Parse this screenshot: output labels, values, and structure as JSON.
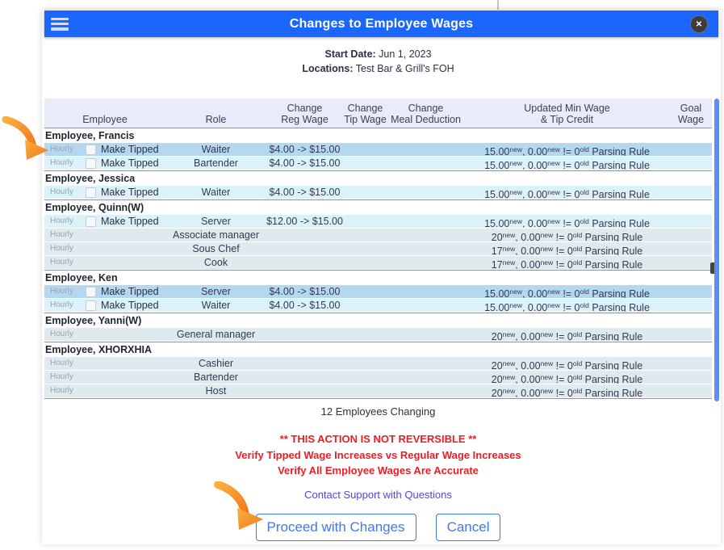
{
  "modal": {
    "title": "Changes to Employee Wages",
    "menu_icon": "hamburger",
    "close_glyph": "✕"
  },
  "info": {
    "start_date_label": "Start Date:",
    "start_date_value": " Jun 1, 2023",
    "locations_label": "Locations:",
    "locations_value": " Test Bar & Grill's FOH"
  },
  "table": {
    "columns": [
      {
        "label": "Employee"
      },
      {
        "label": "Role"
      },
      {
        "label": "Change\nReg Wage"
      },
      {
        "label": "Change\nTip Wage"
      },
      {
        "label": "Change\nMeal Deduction"
      },
      {
        "label": "Updated Min Wage\n& Tip Credit"
      },
      {
        "label": "Goal Wage"
      }
    ],
    "hourly_label": "Hourly",
    "make_tipped_label": "Make Tipped",
    "sup_new": "new",
    "sup_old": "old",
    "groups": [
      {
        "name": "Employee, Francis",
        "rows": [
          {
            "type": "selected",
            "tipped": true,
            "role": "Waiter",
            "reg_wage": "$4.00 -> $15.00",
            "min_new": "15.00",
            "tip_new": "0.00",
            "old": "0",
            "note": "Parsing Rule"
          },
          {
            "type": "tipped",
            "tipped": true,
            "role": "Bartender",
            "reg_wage": "$4.00 -> $15.00",
            "min_new": "15.00",
            "tip_new": "0.00",
            "old": "0",
            "note": "Parsing Rule"
          }
        ]
      },
      {
        "name": "Employee, Jessica",
        "rows": [
          {
            "type": "tipped",
            "tipped": true,
            "role": "Waiter",
            "reg_wage": "$4.00 -> $15.00",
            "min_new": "15.00",
            "tip_new": "0.00",
            "old": "0",
            "note": "Parsing Rule"
          }
        ]
      },
      {
        "name": "Employee, Quinn(W)",
        "rows": [
          {
            "type": "tipped",
            "tipped": true,
            "role": "Server",
            "reg_wage": "$12.00 -> $15.00",
            "min_new": "15.00",
            "tip_new": "0.00",
            "old": "0",
            "note": "Parsing Rule"
          },
          {
            "type": "plain",
            "tipped": false,
            "role": "Associate manager",
            "reg_wage": "",
            "min_new": "20",
            "tip_new": "0.00",
            "old": "0",
            "note": "Parsing Rule"
          },
          {
            "type": "plain",
            "tipped": false,
            "role": "Sous Chef",
            "reg_wage": "",
            "min_new": "17",
            "tip_new": "0.00",
            "old": "0",
            "note": "Parsing Rule"
          },
          {
            "type": "plain",
            "tipped": false,
            "role": "Cook",
            "reg_wage": "",
            "min_new": "17",
            "tip_new": "0.00",
            "old": "0",
            "note": "Parsing Rule"
          }
        ]
      },
      {
        "name": "Employee, Ken",
        "rows": [
          {
            "type": "selected",
            "tipped": true,
            "role": "Server",
            "reg_wage": "$4.00 -> $15.00",
            "min_new": "15.00",
            "tip_new": "0.00",
            "old": "0",
            "note": "Parsing Rule"
          },
          {
            "type": "tipped",
            "tipped": true,
            "role": "Waiter",
            "reg_wage": "$4.00 -> $15.00",
            "min_new": "15.00",
            "tip_new": "0.00",
            "old": "0",
            "note": "Parsing Rule"
          }
        ]
      },
      {
        "name": "Employee, Yanni(W)",
        "rows": [
          {
            "type": "plain",
            "tipped": false,
            "role": "General manager",
            "reg_wage": "",
            "min_new": "20",
            "tip_new": "0.00",
            "old": "0",
            "note": "Parsing Rule"
          }
        ]
      },
      {
        "name": "Employee, XHORXHIA",
        "rows": [
          {
            "type": "plain",
            "tipped": false,
            "role": "Cashier",
            "reg_wage": "",
            "min_new": "20",
            "tip_new": "0.00",
            "old": "0",
            "note": "Parsing Rule"
          },
          {
            "type": "plain",
            "tipped": false,
            "role": "Bartender",
            "reg_wage": "",
            "min_new": "20",
            "tip_new": "0.00",
            "old": "0",
            "note": "Parsing Rule"
          },
          {
            "type": "plain",
            "tipped": false,
            "role": "Host",
            "reg_wage": "",
            "min_new": "20",
            "tip_new": "0.00",
            "old": "0",
            "note": "Parsing Rule"
          }
        ]
      }
    ]
  },
  "footer": {
    "count_text": "12 Employees Changing",
    "warning1": "** THIS ACTION IS NOT REVERSIBLE **",
    "warning2": "Verify Tipped Wage Increases vs Regular Wage Increases",
    "warning3": "Verify All Employee Wages Are Accurate",
    "support_link": "Contact Support with Questions",
    "proceed_label": "Proceed with Changes",
    "cancel_label": "Cancel"
  },
  "colors": {
    "header_blue": "#1b67fb",
    "row_selected": "#b5d8f1",
    "row_tipped": "#dcf2fa",
    "row_plain": "#dfeaef",
    "table_header_bg": "#e8ecf8",
    "warning_red": "#ed1c24",
    "link_color": "#4d4ad6",
    "button_blue": "#3d79f2",
    "arrow_orange": "#f7941e"
  }
}
